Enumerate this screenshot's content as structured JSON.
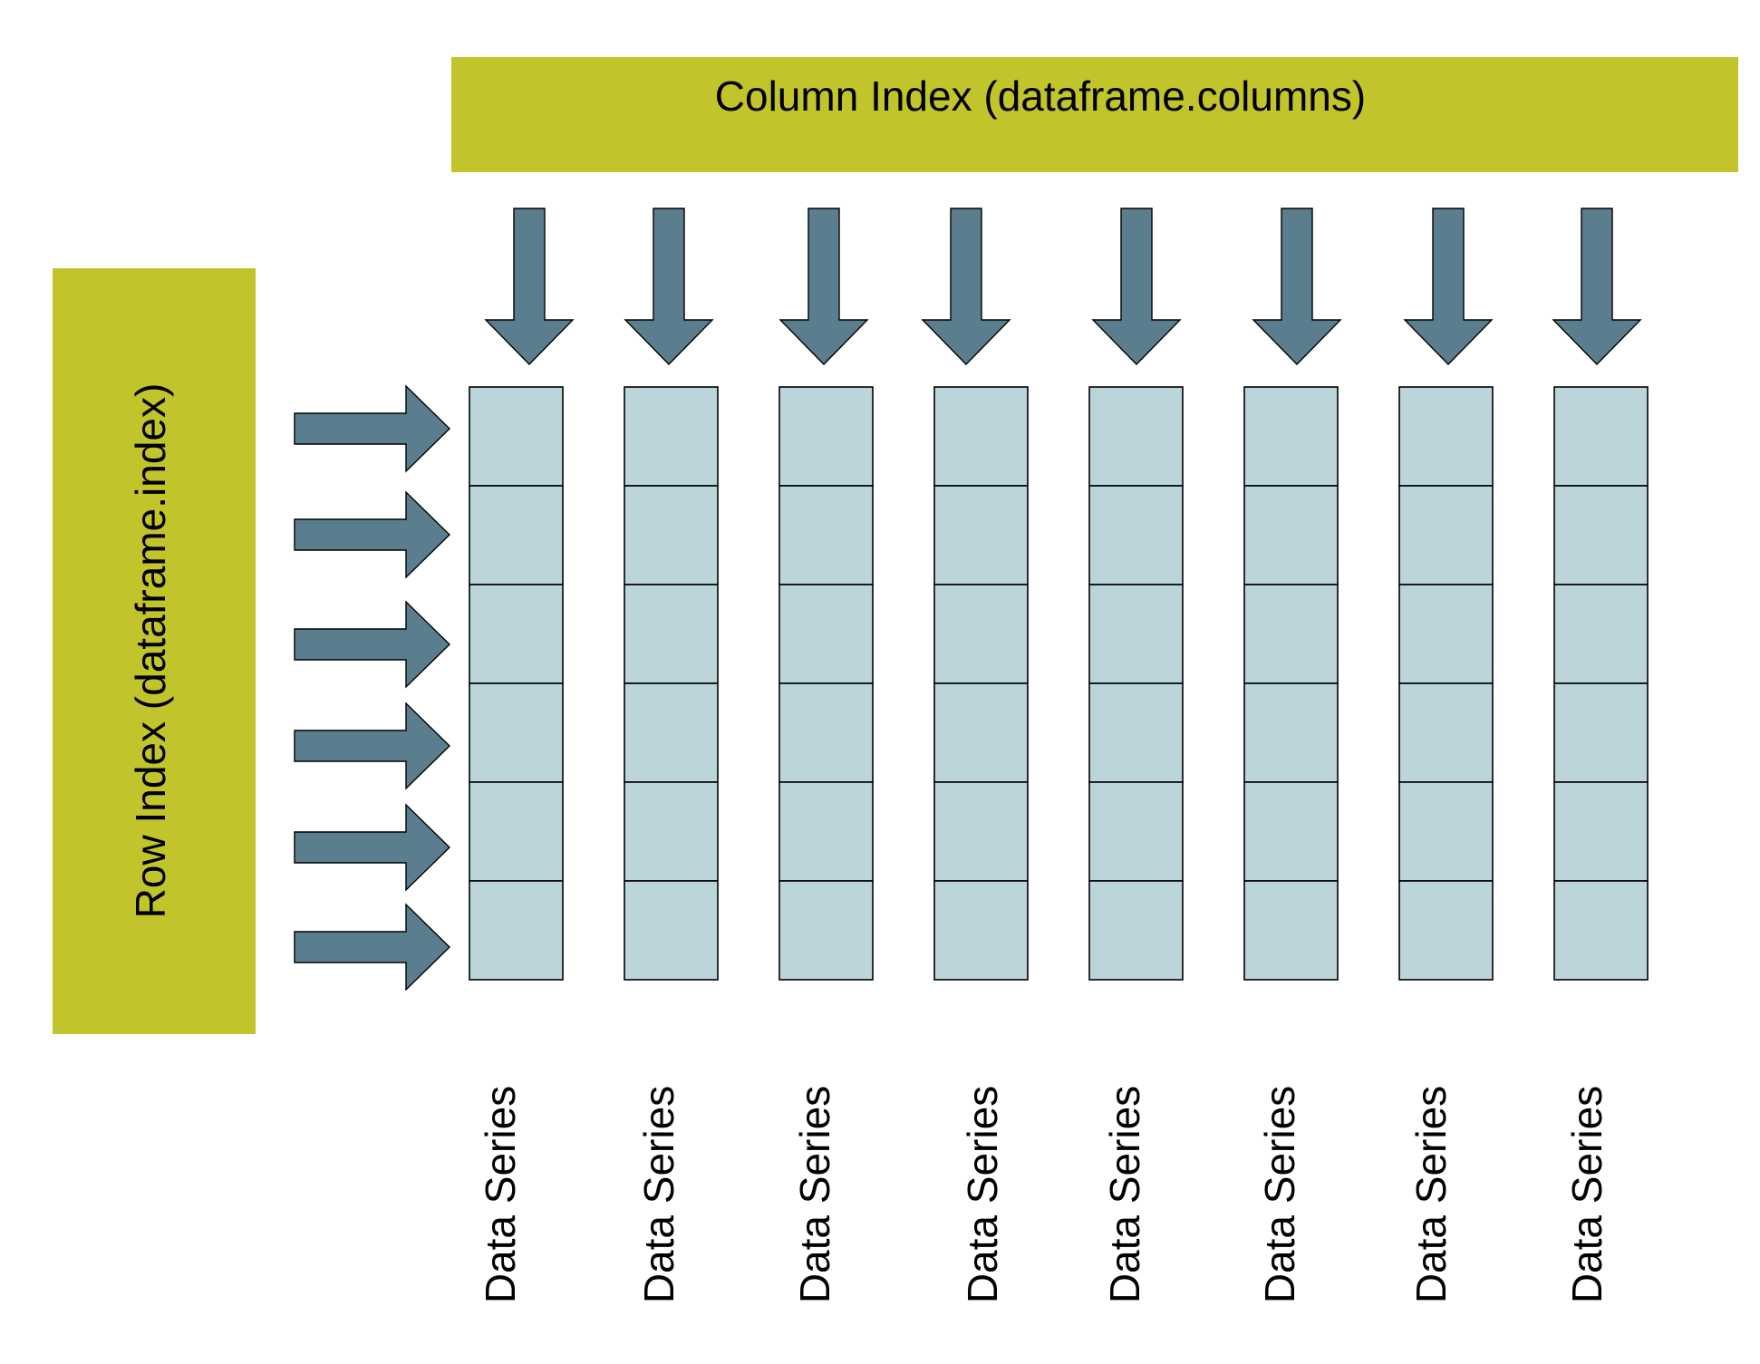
{
  "column_index": {
    "label": "Column Index (dataframe.columns)"
  },
  "row_index": {
    "label": "Row Index (dataframe.index)"
  },
  "grid": {
    "column_count": 8,
    "row_count": 6
  },
  "series_labels": [
    "Data Series",
    "Data Series",
    "Data Series",
    "Data Series",
    "Data Series",
    "Data Series",
    "Data Series",
    "Data Series"
  ],
  "colors": {
    "index_box": "#c2c42c",
    "arrow": "#5b7e8f",
    "cell": "#bcd5db",
    "outline": "#000000",
    "text": "#000000"
  }
}
